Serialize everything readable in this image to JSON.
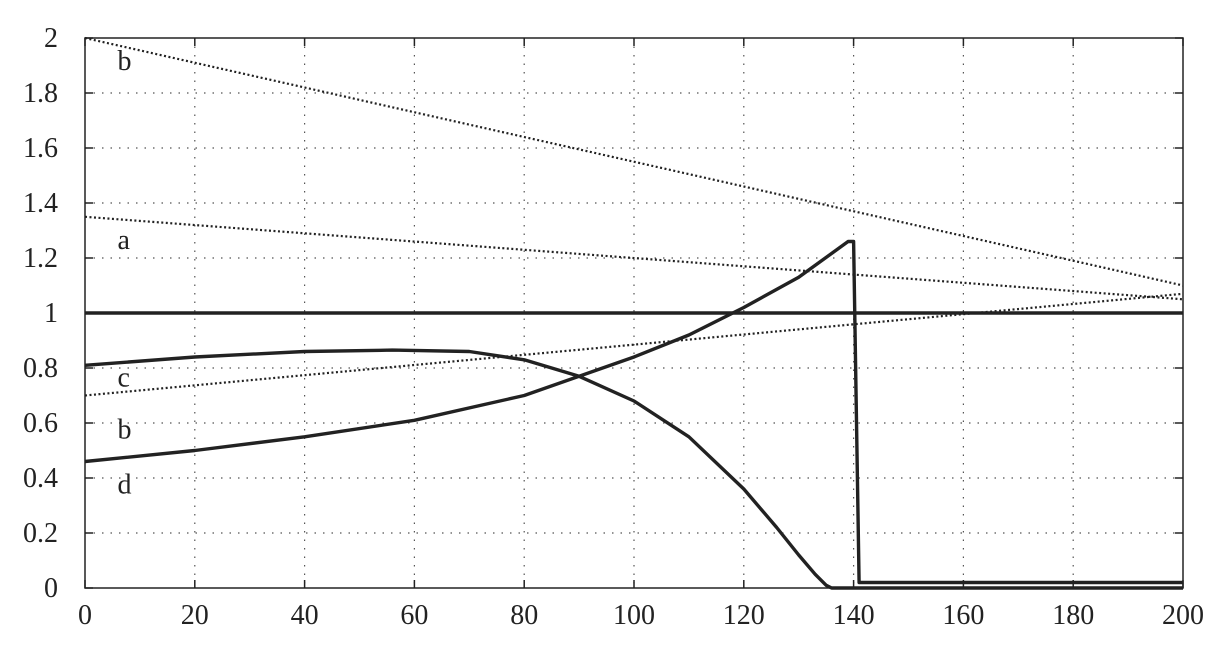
{
  "chart_data": {
    "type": "line",
    "title": "",
    "xlabel": "",
    "ylabel": "",
    "xlim": [
      0,
      200
    ],
    "ylim": [
      0,
      2
    ],
    "grid": true,
    "x_ticks": [
      0,
      20,
      40,
      60,
      80,
      100,
      120,
      140,
      160,
      180,
      200
    ],
    "y_ticks": [
      0,
      0.2,
      0.4,
      0.6,
      0.8,
      1,
      1.2,
      1.4,
      1.6,
      1.8,
      2
    ],
    "x_tick_labels": [
      "0",
      "20",
      "40",
      "60",
      "80",
      "100",
      "120",
      "140",
      "160",
      "180",
      "200"
    ],
    "y_tick_labels": [
      "0",
      "0.2",
      "0.4",
      "0.6",
      "0.8",
      "1",
      "1.2",
      "1.4",
      "1.6",
      "1.8",
      "2"
    ],
    "series": [
      {
        "name": "b",
        "style": "dotted",
        "x": [
          0,
          200
        ],
        "y": [
          2.0,
          1.1
        ]
      },
      {
        "name": "a",
        "style": "dotted",
        "x": [
          0,
          200
        ],
        "y": [
          1.35,
          1.05
        ]
      },
      {
        "name": "c",
        "style": "dotted",
        "x": [
          0,
          200
        ],
        "y": [
          0.7,
          1.07
        ]
      },
      {
        "name": "",
        "style": "solid",
        "x": [
          0,
          200
        ],
        "y": [
          1.0,
          1.0
        ]
      },
      {
        "name": "b",
        "style": "solid",
        "x": [
          0,
          20,
          40,
          60,
          80,
          100,
          110,
          120,
          130,
          139,
          140,
          141,
          160,
          180,
          200
        ],
        "y": [
          0.46,
          0.5,
          0.55,
          0.61,
          0.7,
          0.84,
          0.92,
          1.02,
          1.13,
          1.26,
          1.26,
          0.02,
          0.02,
          0.02,
          0.02
        ]
      },
      {
        "name": "d",
        "style": "solid",
        "x": [
          0,
          20,
          40,
          56,
          70,
          80,
          90,
          100,
          110,
          120,
          126,
          130,
          133,
          135,
          136,
          160,
          180,
          200
        ],
        "y": [
          0.81,
          0.84,
          0.86,
          0.865,
          0.86,
          0.83,
          0.77,
          0.68,
          0.55,
          0.36,
          0.22,
          0.12,
          0.05,
          0.01,
          0.0,
          0.0,
          0.0,
          0.0
        ]
      }
    ],
    "annotations": [
      {
        "text": "b",
        "x": 3,
        "y": 1.92
      },
      {
        "text": "a",
        "x": 3,
        "y": 1.27
      },
      {
        "text": "c",
        "x": 3,
        "y": 0.77
      },
      {
        "text": "b",
        "x": 3,
        "y": 0.58
      },
      {
        "text": "d",
        "x": 3,
        "y": 0.38
      }
    ]
  }
}
